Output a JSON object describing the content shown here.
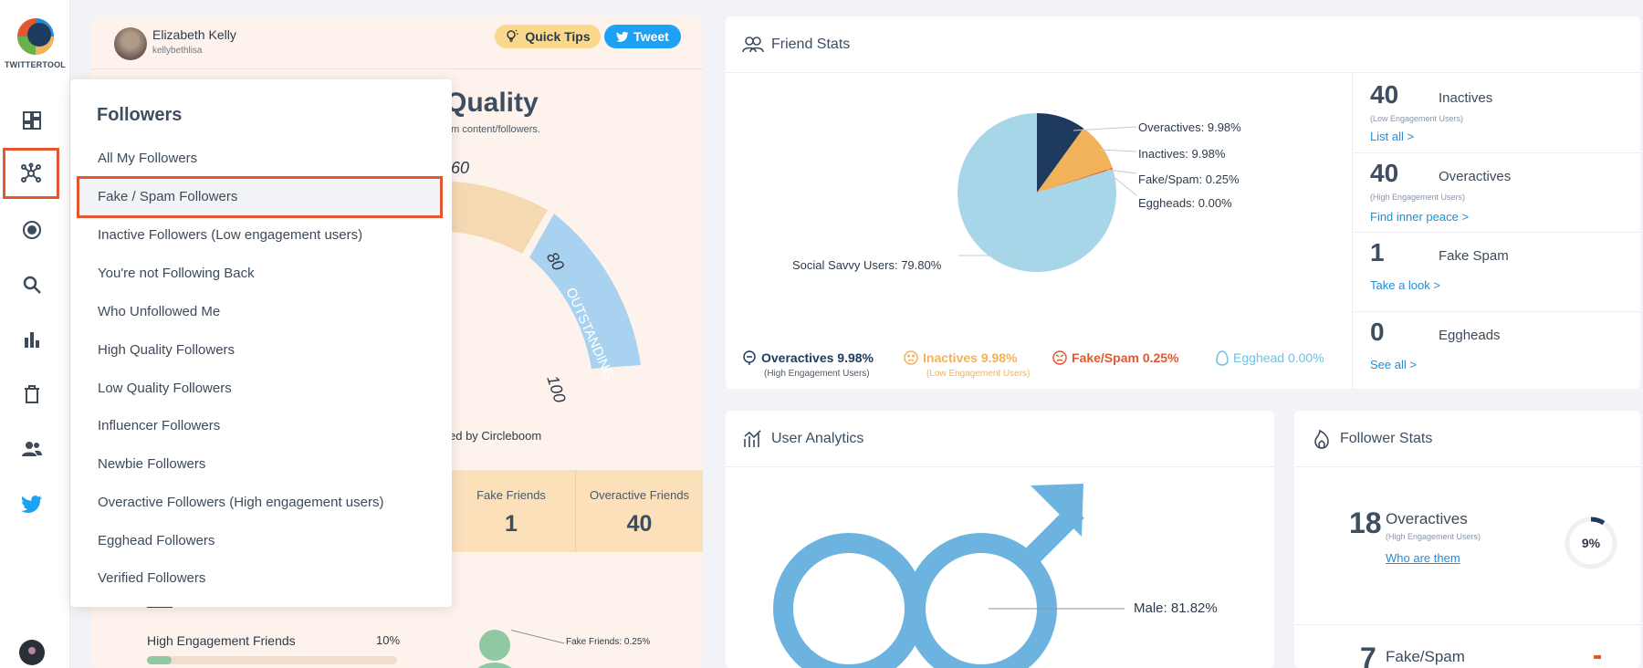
{
  "brand": {
    "name": "TWITTERTOOL"
  },
  "sidebar": {
    "items": [
      {
        "icon": "dashboard-icon"
      },
      {
        "icon": "network-icon",
        "active": true
      },
      {
        "icon": "target-icon"
      },
      {
        "icon": "search-icon"
      },
      {
        "icon": "bar-chart-icon"
      },
      {
        "icon": "trash-icon"
      },
      {
        "icon": "users-icon"
      },
      {
        "icon": "twitter-icon"
      }
    ]
  },
  "profile": {
    "name": "Elizabeth Kelly",
    "handle": "kellybethlisa"
  },
  "header_buttons": {
    "tips": "Quick Tips",
    "tweet": "Tweet"
  },
  "quality": {
    "title": "Quality",
    "subtitle": "am content/followers.",
    "gauge_labels": [
      "60",
      "80",
      "100"
    ],
    "band_label": "OUTSTANDING",
    "powered_by": "ed by Circleboom",
    "strip": [
      {
        "label": "Fake Friends",
        "value": "1"
      },
      {
        "label": "Overactive Friends",
        "value": "40"
      }
    ],
    "high_engagement": {
      "label": "High Engagement Friends",
      "percent": "10%",
      "fill": 0.1
    },
    "fake_friends_label": "Fake Friends: 0.25%"
  },
  "followers_menu": {
    "title": "Followers",
    "items": [
      "All My Followers",
      "Fake / Spam Followers",
      "Inactive Followers (Low engagement users)",
      "You're not Following Back",
      "Who Unfollowed Me",
      "High Quality Followers",
      "Low Quality Followers",
      "Influencer Followers",
      "Newbie Followers",
      "Overactive Followers (High engagement users)",
      "Egghead Followers",
      "Verified Followers"
    ],
    "selected": "Fake / Spam Followers"
  },
  "friend_stats": {
    "title": "Friend Stats",
    "chart_data": {
      "type": "pie",
      "slices": [
        {
          "name": "Overactives",
          "value": 9.98,
          "color": "#1f3a5f"
        },
        {
          "name": "Inactives",
          "value": 9.98,
          "color": "#f2b25a"
        },
        {
          "name": "Fake/Spam",
          "value": 0.25,
          "color": "#e4572e"
        },
        {
          "name": "Eggheads",
          "value": 0.0,
          "color": "#a9d9ec"
        },
        {
          "name": "Social Savvy Users",
          "value": 79.8,
          "color": "#a6d6e8"
        }
      ],
      "labels": [
        "Overactives: 9.98%",
        "Inactives: 9.98%",
        "Fake/Spam: 0.25%",
        "Eggheads: 0.00%",
        "Social Savvy Users: 79.80%"
      ]
    },
    "legend": [
      {
        "text": "Overactives 9.98%",
        "sub": "(High Engagement Users)",
        "color": "#1f3a5f"
      },
      {
        "text": "Inactives 9.98%",
        "sub": "(Low Engagement Users)",
        "color": "#f2b25a"
      },
      {
        "text": "Fake/Spam 0.25%",
        "sub": "",
        "color": "#e4572e"
      },
      {
        "text": "Egghead 0.00%",
        "sub": "",
        "color": "#6ec1e4"
      }
    ],
    "side": [
      {
        "num": "40",
        "name": "Inactives",
        "sub": "(Low Engagement Users)",
        "link": "List all >"
      },
      {
        "num": "40",
        "name": "Overactives",
        "sub": "(High Engagement Users)",
        "link": "Find inner peace >"
      },
      {
        "num": "1",
        "name": "Fake Spam",
        "sub": "",
        "link": "Take a look >"
      },
      {
        "num": "0",
        "name": "Eggheads",
        "sub": "",
        "link": "See all >"
      }
    ]
  },
  "user_analytics": {
    "title": "User Analytics",
    "male_label": "Male: 81.82%"
  },
  "follower_stats": {
    "title": "Follower Stats",
    "items": [
      {
        "num": "18",
        "name": "Overactives",
        "sub": "(High Engagement Users)",
        "link": "Who are them",
        "percent": "9%",
        "fraction": 0.09
      },
      {
        "num": "7",
        "name": "Fake/Spam"
      }
    ]
  }
}
